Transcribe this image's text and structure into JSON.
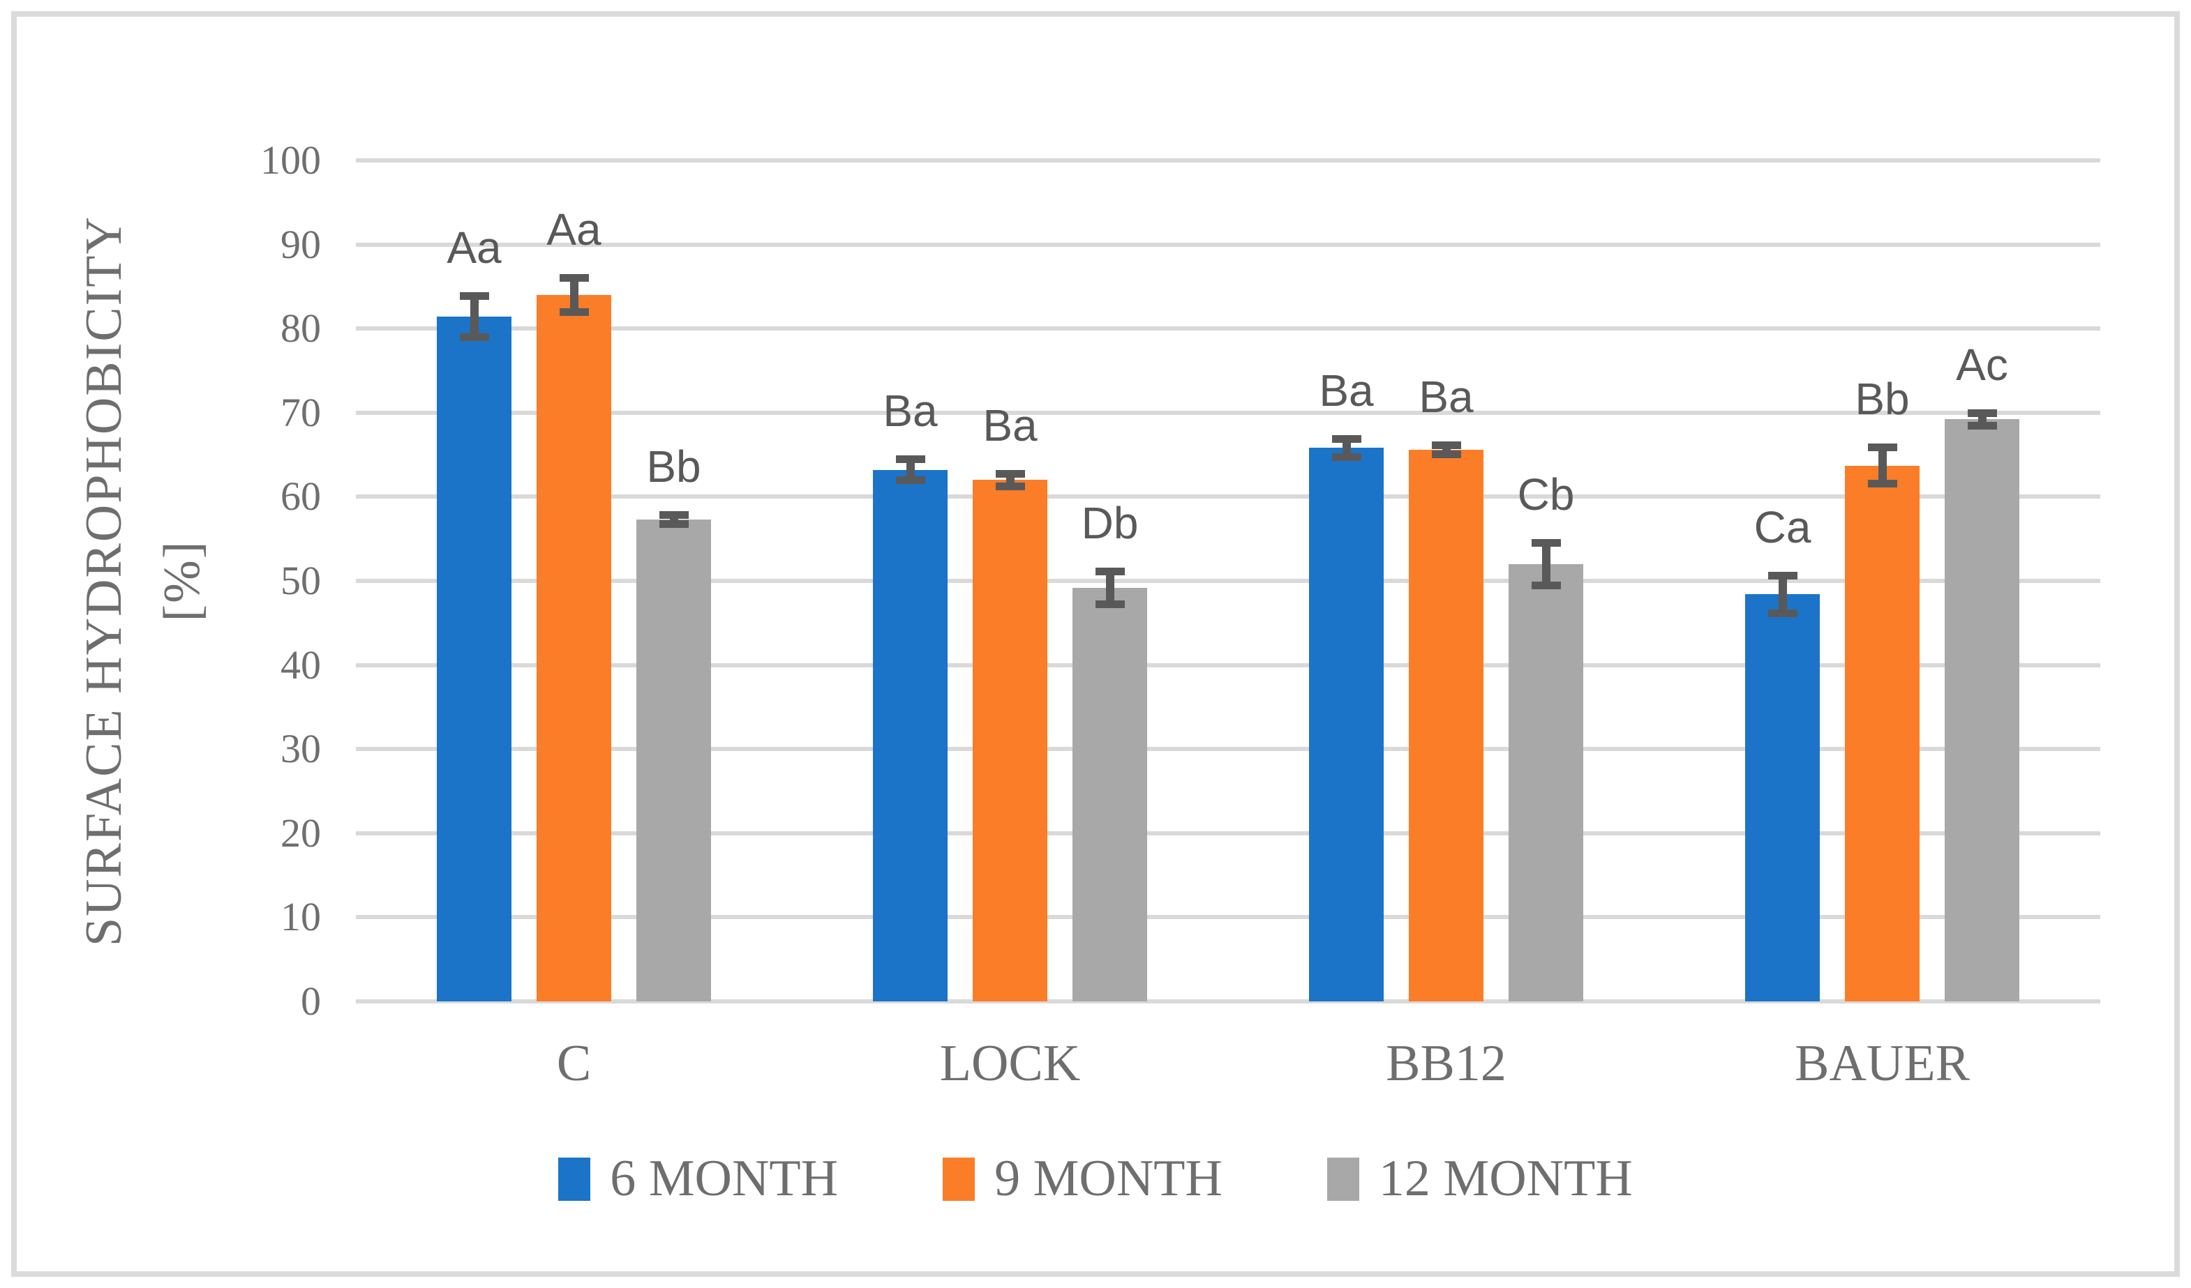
{
  "chart_data": {
    "type": "bar",
    "title": "",
    "ylabel": "SURFACE HYDROPHOBICITY [%]",
    "ylabel_lines": [
      "SURFACE HYDROPHOBICITY",
      "[%]"
    ],
    "categories": [
      "C",
      "LOCK",
      "BB12",
      "BAUER"
    ],
    "series": [
      {
        "name": "6 MONTH",
        "color": "#1B74C8",
        "values": [
          81.4,
          63.2,
          65.8,
          48.4
        ],
        "errors": [
          2.9,
          1.7,
          1.5,
          2.7
        ],
        "annotations": [
          "Aa",
          "Ba",
          "Ba",
          "Ca"
        ]
      },
      {
        "name": "9 MONTH",
        "color": "#FB7D27",
        "values": [
          84.0,
          62.0,
          65.6,
          63.7
        ],
        "errors": [
          2.5,
          1.2,
          1.0,
          2.6
        ],
        "annotations": [
          "Aa",
          "Ba",
          "Ba",
          "Bb"
        ]
      },
      {
        "name": "12 MONTH",
        "color": "#A8A8A8",
        "values": [
          57.3,
          49.2,
          52.0,
          69.2
        ],
        "errors": [
          1.0,
          2.4,
          3.0,
          1.2
        ],
        "annotations": [
          "Bb",
          "Db",
          "Cb",
          "Ac"
        ]
      }
    ],
    "ylim": [
      0,
      100
    ],
    "ytick_step": 10,
    "yticks": [
      0,
      10,
      20,
      30,
      40,
      50,
      60,
      70,
      80,
      90,
      100
    ],
    "grid": true,
    "legend_position": "bottom",
    "styles": {
      "gridline_color": "#D9D9D9",
      "error_bar_color": "#595959",
      "axis_text_color": "#6E6E6E",
      "annotation_color": "#595959",
      "border_color": "#DBDBDB"
    }
  }
}
